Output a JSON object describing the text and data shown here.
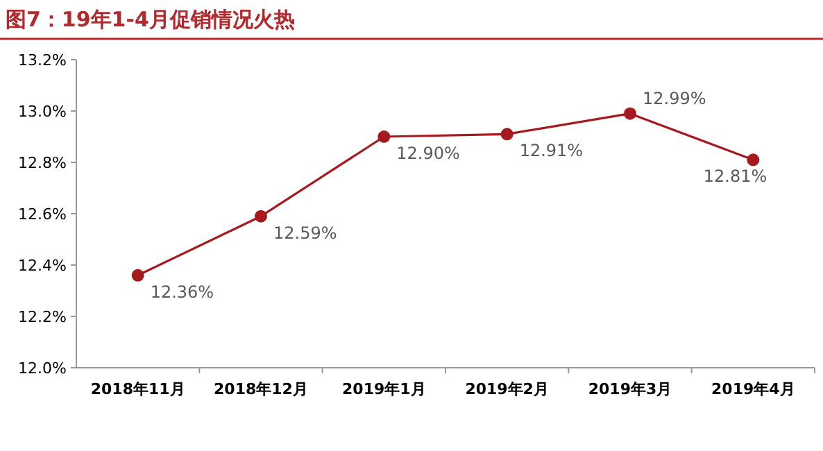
{
  "chart_data": {
    "type": "line",
    "title": "图7：19年1-4月促销情况火热",
    "categories": [
      "2018年11月",
      "2018年12月",
      "2019年1月",
      "2019年2月",
      "2019年3月",
      "2019年4月"
    ],
    "values": [
      12.36,
      12.59,
      12.9,
      12.91,
      12.99,
      12.81
    ],
    "value_labels": [
      "12.36%",
      "12.59%",
      "12.90%",
      "12.91%",
      "12.99%",
      "12.81%"
    ],
    "color": "#a6191e",
    "marker": "circle",
    "grid": false,
    "ylim": [
      12.0,
      13.2
    ],
    "yticks": [
      {
        "value": 12.0,
        "label": "12.0%"
      },
      {
        "value": 12.2,
        "label": "12.2%"
      },
      {
        "value": 12.4,
        "label": "12.4%"
      },
      {
        "value": 12.6,
        "label": "12.6%"
      },
      {
        "value": 12.8,
        "label": "12.8%"
      },
      {
        "value": 13.0,
        "label": "13.0%"
      },
      {
        "value": 13.2,
        "label": "13.2%"
      }
    ]
  }
}
